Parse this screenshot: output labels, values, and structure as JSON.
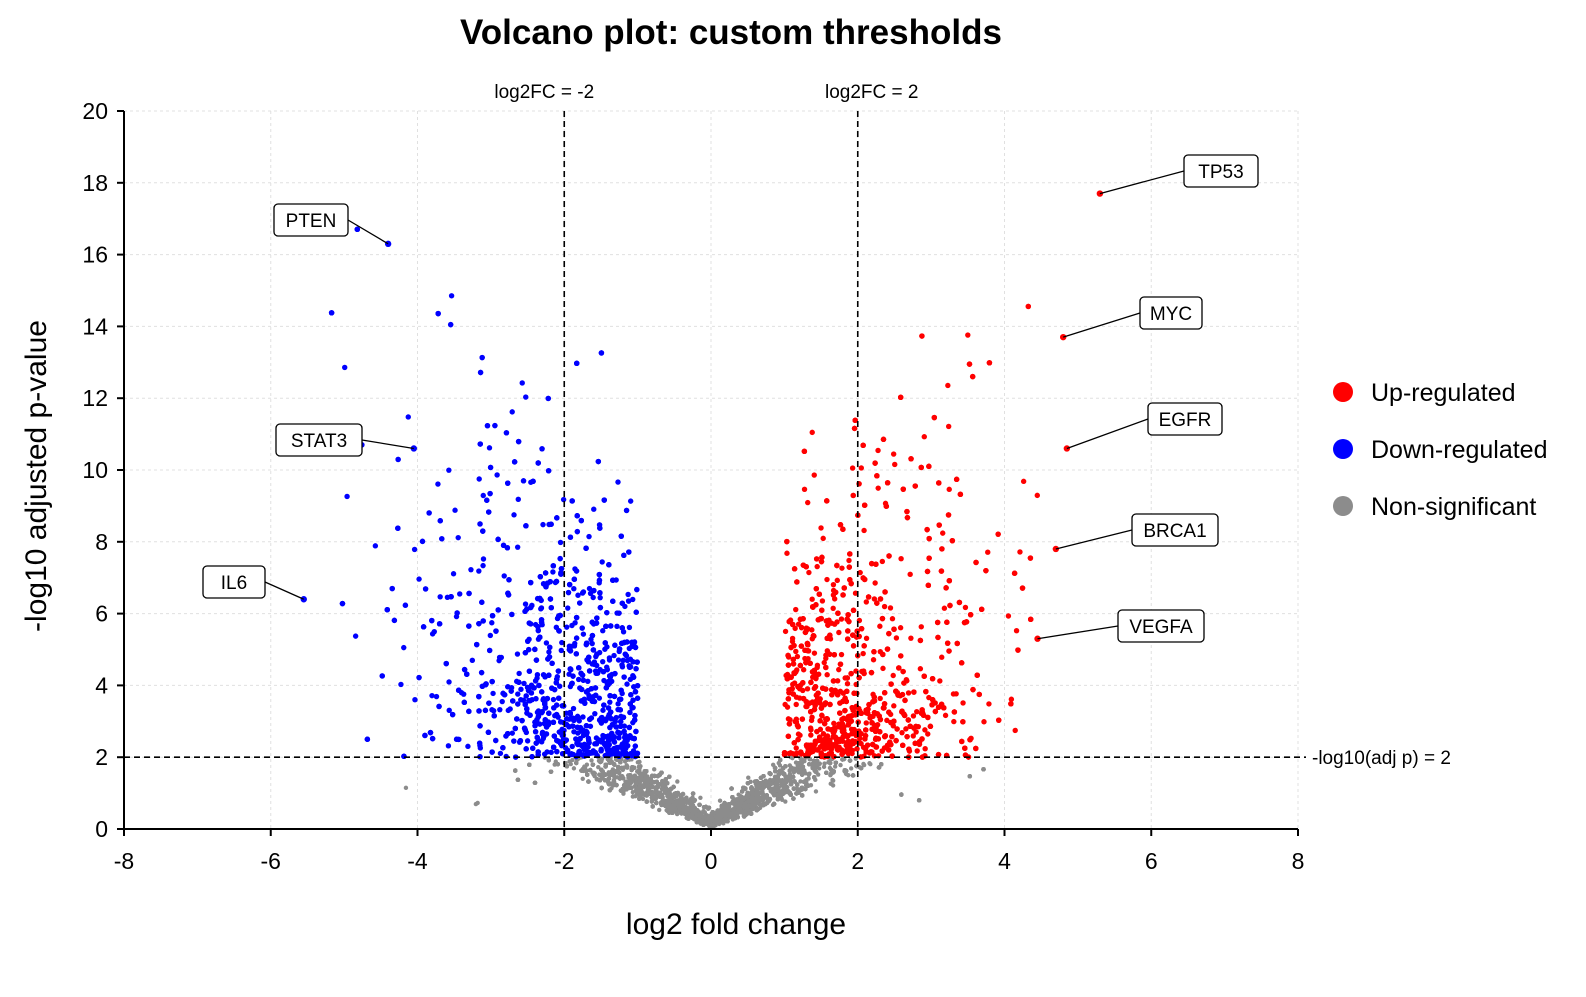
{
  "chart_data": {
    "type": "scatter",
    "title": "Volcano plot: custom thresholds",
    "xlabel": "log2 fold change",
    "ylabel": "-log10 adjusted p-value",
    "xlim": [
      -8,
      8
    ],
    "ylim": [
      0,
      20
    ],
    "xticks": [
      -8,
      -6,
      -4,
      -2,
      0,
      2,
      4,
      6,
      8
    ],
    "yticks": [
      0,
      2,
      4,
      6,
      8,
      10,
      12,
      14,
      16,
      18,
      20
    ],
    "grid": true,
    "legend_position": "right",
    "thresholds": {
      "log2fc": [
        -2,
        2
      ],
      "neg_log10_p": 2,
      "labels": {
        "fc_low": "log2FC = -2",
        "fc_high": "log2FC = 2",
        "p": "-log10(adj p) = 2"
      }
    },
    "series": [
      {
        "name": "Up-regulated",
        "color": "#ff0000",
        "approx_point_count": 1500
      },
      {
        "name": "Down-regulated",
        "color": "#0000ff",
        "approx_point_count": 1500
      },
      {
        "name": "Non-significant",
        "color": "#8c8c8c",
        "approx_point_count": 6000
      }
    ],
    "highlighted_genes": [
      {
        "label": "TP53",
        "x": 5.3,
        "y": 17.7
      },
      {
        "label": "MYC",
        "x": 4.8,
        "y": 13.7
      },
      {
        "label": "EGFR",
        "x": 4.85,
        "y": 10.6
      },
      {
        "label": "BRCA1",
        "x": 4.7,
        "y": 7.8
      },
      {
        "label": "VEGFA",
        "x": 4.45,
        "y": 5.3
      },
      {
        "label": "PTEN",
        "x": -4.4,
        "y": 16.3
      },
      {
        "label": "STAT3",
        "x": -4.05,
        "y": 10.6
      },
      {
        "label": "IL6",
        "x": -5.55,
        "y": 6.4
      }
    ]
  }
}
